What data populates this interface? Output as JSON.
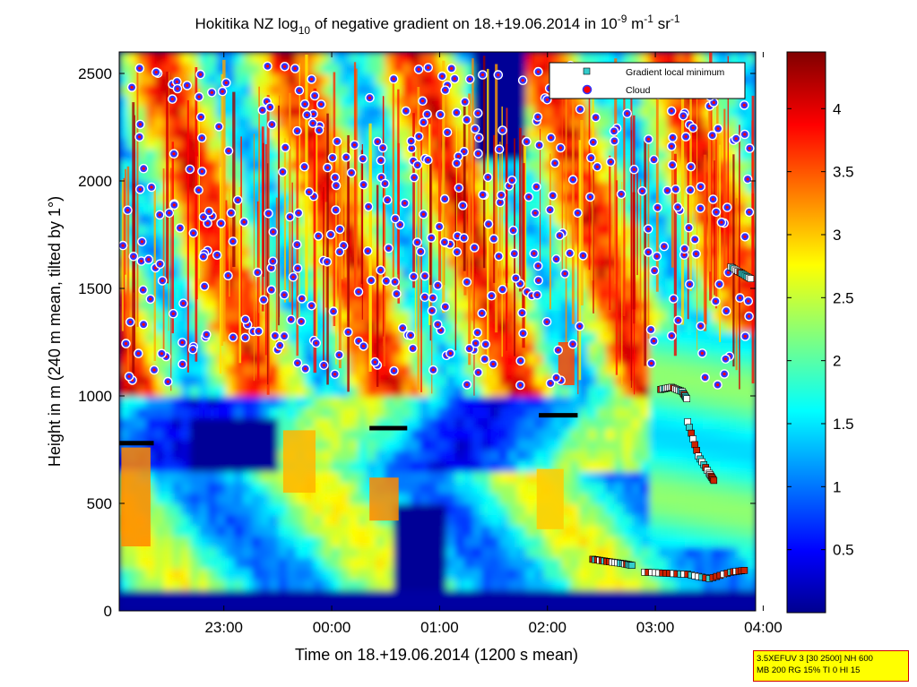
{
  "chart_data": {
    "type": "heatmap",
    "title": {
      "prefix": "Hokitika NZ log",
      "sub": "10",
      "mid": " of negative gradient on 18.+19.06.2014 in 10",
      "sup1": "-9",
      "mid2": " m",
      "sup2": "-1",
      "mid3": " sr",
      "sup3": "-1"
    },
    "xlabel": "Time on 18.+19.06.2014 (1200 s mean)",
    "ylabel": "Height in m (240 m mean, tilted by 1°)",
    "xticks": [
      {
        "label": "23:00",
        "hour": 23.0
      },
      {
        "label": "00:00",
        "hour": 24.0
      },
      {
        "label": "01:00",
        "hour": 25.0
      },
      {
        "label": "02:00",
        "hour": 26.0
      },
      {
        "label": "03:00",
        "hour": 27.0
      },
      {
        "label": "04:00",
        "hour": 28.0
      }
    ],
    "xlim_hours": [
      22.03,
      27.93
    ],
    "ylim": [
      0,
      2600
    ],
    "yticks": [
      0,
      500,
      1000,
      1500,
      2000,
      2500
    ],
    "colorbar": {
      "range": [
        0,
        4.45
      ],
      "ticks": [
        0.5,
        1,
        1.5,
        2,
        2.5,
        3,
        3.5,
        4
      ],
      "colormap": "jet"
    },
    "legend": {
      "placement": "top-right",
      "entries": [
        {
          "label": "Gradient local minimum",
          "marker": "square",
          "color": "#33cccc"
        },
        {
          "label": "Cloud",
          "marker": "circle",
          "color": "#ff0000",
          "edge": "#3333ff"
        }
      ]
    },
    "cloud_base_lines": [
      {
        "x_start": 22.03,
        "x_end": 22.35,
        "height": 780
      },
      {
        "x_start": 24.35,
        "x_end": 24.7,
        "height": 850
      },
      {
        "x_start": 25.92,
        "x_end": 26.28,
        "height": 910
      }
    ],
    "local_minimum_tracks": [
      {
        "x": [
          26.42,
          26.55,
          26.7,
          26.8
        ],
        "y": [
          240,
          230,
          220,
          210
        ]
      },
      {
        "x": [
          26.9,
          27.1,
          27.3,
          27.5,
          27.7,
          27.85
        ],
        "y": [
          180,
          175,
          170,
          150,
          180,
          190
        ]
      },
      {
        "x": [
          27.05,
          27.15,
          27.25,
          27.3
        ],
        "y": [
          1030,
          1040,
          1020,
          980
        ]
      },
      {
        "x": [
          27.3,
          27.4,
          27.5,
          27.55
        ],
        "y": [
          880,
          720,
          640,
          600
        ]
      },
      {
        "x": [
          27.7,
          27.8,
          27.9
        ],
        "y": [
          1600,
          1570,
          1540
        ]
      }
    ]
  },
  "infobox": {
    "line1": "3.5XEFUV 3 [30 2500] NH 600",
    "line2": "MB 200 RG 15% TI 0 HI 15"
  }
}
